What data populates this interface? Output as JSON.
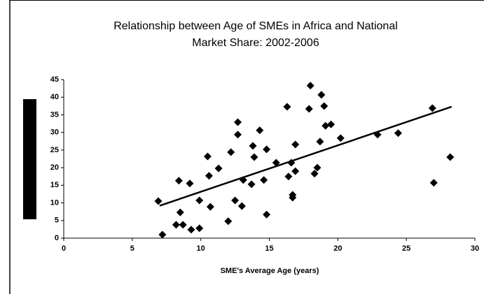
{
  "chart_data": {
    "type": "scatter",
    "title": "Relationship between Age of SMEs in Africa and National Market Share: 2002-2006",
    "xlabel": "SME's Average Age (years)",
    "x": [
      6.9,
      7.2,
      8.4,
      8.5,
      8.2,
      8.7,
      9.2,
      9.3,
      9.9,
      9.9,
      10.5,
      10.6,
      10.7,
      11.3,
      12,
      12.2,
      12.5,
      12.7,
      12.7,
      13,
      13.1,
      13.7,
      13.8,
      13.9,
      14.3,
      14.6,
      14.8,
      14.8,
      15.5,
      16.3,
      16.4,
      16.6,
      16.7,
      16.7,
      16.9,
      16.9,
      17.9,
      18,
      18.3,
      18.5,
      18.7,
      18.8,
      19,
      19.1,
      19.5,
      20.2,
      22.9,
      24.4,
      26.9,
      27,
      28.2
    ],
    "values": [
      10.5,
      1,
      16.3,
      7.3,
      3.8,
      3.8,
      15.5,
      2.4,
      2.8,
      10.7,
      23.2,
      17.7,
      8.9,
      19.8,
      4.8,
      24.4,
      10.7,
      32.9,
      29.4,
      9.1,
      16.5,
      15.3,
      26.2,
      23,
      30.6,
      16.5,
      25.2,
      6.7,
      21.4,
      37.3,
      17.5,
      21.4,
      12.3,
      11.5,
      19,
      26.6,
      36.7,
      43.3,
      18.3,
      20,
      27.4,
      40.7,
      37.5,
      31.9,
      32.3,
      28.4,
      29.4,
      29.8,
      36.9,
      15.7,
      23
    ],
    "color": "#000000",
    "trendline": {
      "x": [
        7,
        28.3
      ],
      "values": [
        9.2,
        37.3
      ],
      "color": "#000000"
    },
    "xlim": [
      0,
      30
    ],
    "xticks": [
      0,
      5,
      10,
      15,
      20,
      25,
      30
    ],
    "ylim": [
      0,
      45
    ],
    "yticks": [
      0,
      5,
      10,
      15,
      20,
      25,
      30,
      35,
      40,
      45
    ],
    "grid": false
  }
}
